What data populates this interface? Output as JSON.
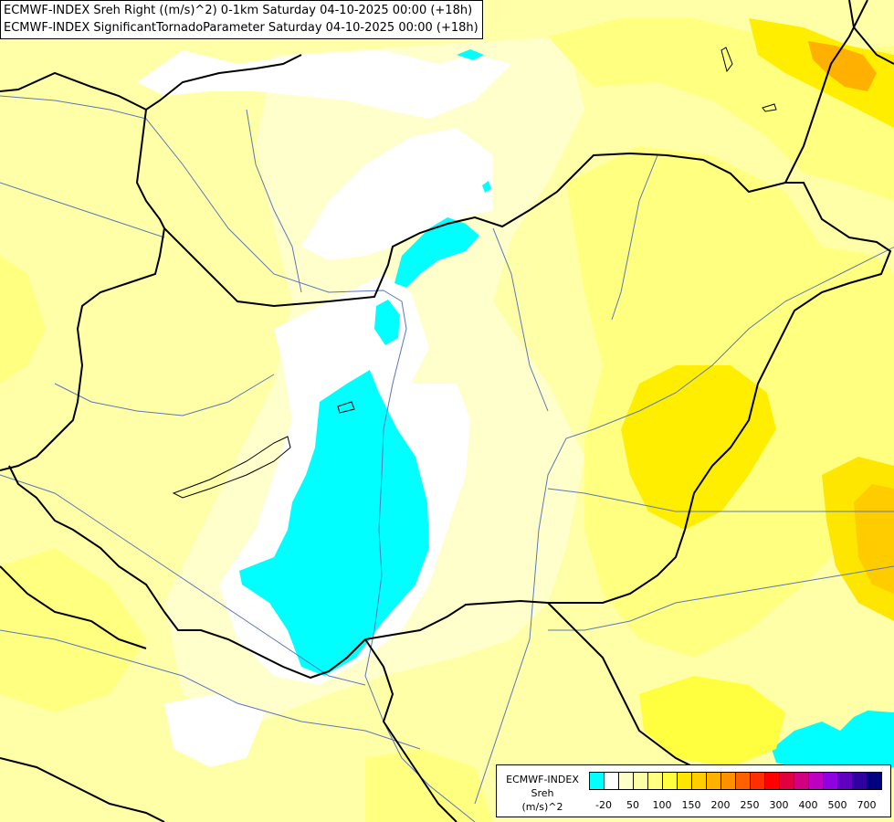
{
  "map": {
    "title_line1": "ECMWF-INDEX Sreh Right ((m/s)^2) 0-1km Saturday 04-10-2025 00:00 (+18h)",
    "title_line2": "ECMWF-INDEX SignificantTornadoParameter Saturday 04-10-2025 00:00 (+18h)",
    "background_color": "#ffffa8"
  },
  "legend": {
    "line1": "ECMWF-INDEX",
    "line2": "Sreh",
    "line3": "(m/s)^2",
    "colors": [
      "#00ffff",
      "#ffffff",
      "#ffffcc",
      "#ffffa8",
      "#ffff80",
      "#ffff40",
      "#ffe600",
      "#ffcc00",
      "#ffb000",
      "#ff9000",
      "#ff6000",
      "#ff3000",
      "#ff0000",
      "#e00040",
      "#d00080",
      "#c000c0",
      "#9000e0",
      "#6000c0",
      "#3000a0",
      "#000080"
    ],
    "ticks": [
      "-20",
      "50",
      "100",
      "150",
      "200",
      "250",
      "300",
      "400",
      "500",
      "700"
    ]
  }
}
